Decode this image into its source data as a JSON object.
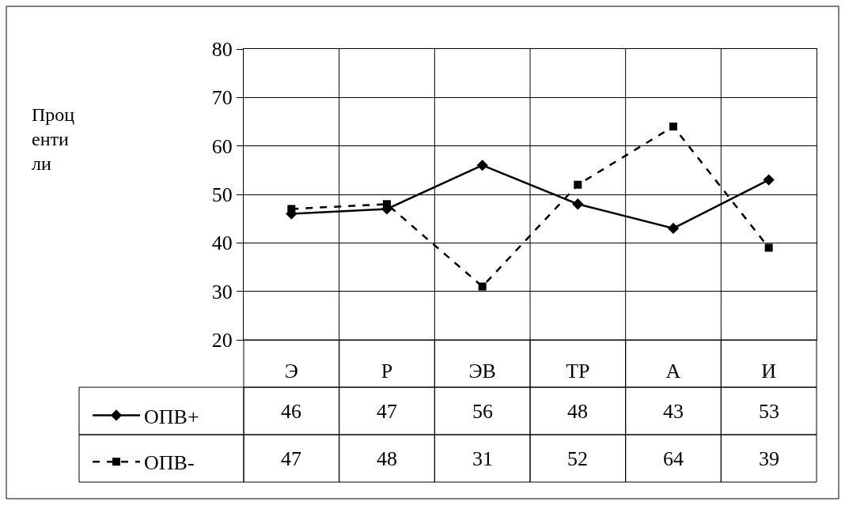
{
  "chart_data": {
    "type": "line",
    "annotations": [
      "Процентили"
    ],
    "categories": [
      "Э",
      "Р",
      "ЭВ",
      "ТР",
      "А",
      "И"
    ],
    "series": [
      {
        "name": "ОПВ+",
        "color": "#000000",
        "values": [
          46,
          47,
          56,
          48,
          43,
          53
        ],
        "marker": "diamond",
        "line_style": "solid"
      },
      {
        "name": "ОПВ-",
        "color": "#000000",
        "values": [
          47,
          48,
          31,
          52,
          64,
          39
        ],
        "marker": "square",
        "line_style": "dashed"
      }
    ],
    "ylim": [
      20,
      80
    ],
    "yticks": [
      20,
      30,
      40,
      50,
      60,
      70,
      80
    ],
    "grid": true,
    "legend": "bottom left",
    "data_labels": true
  }
}
